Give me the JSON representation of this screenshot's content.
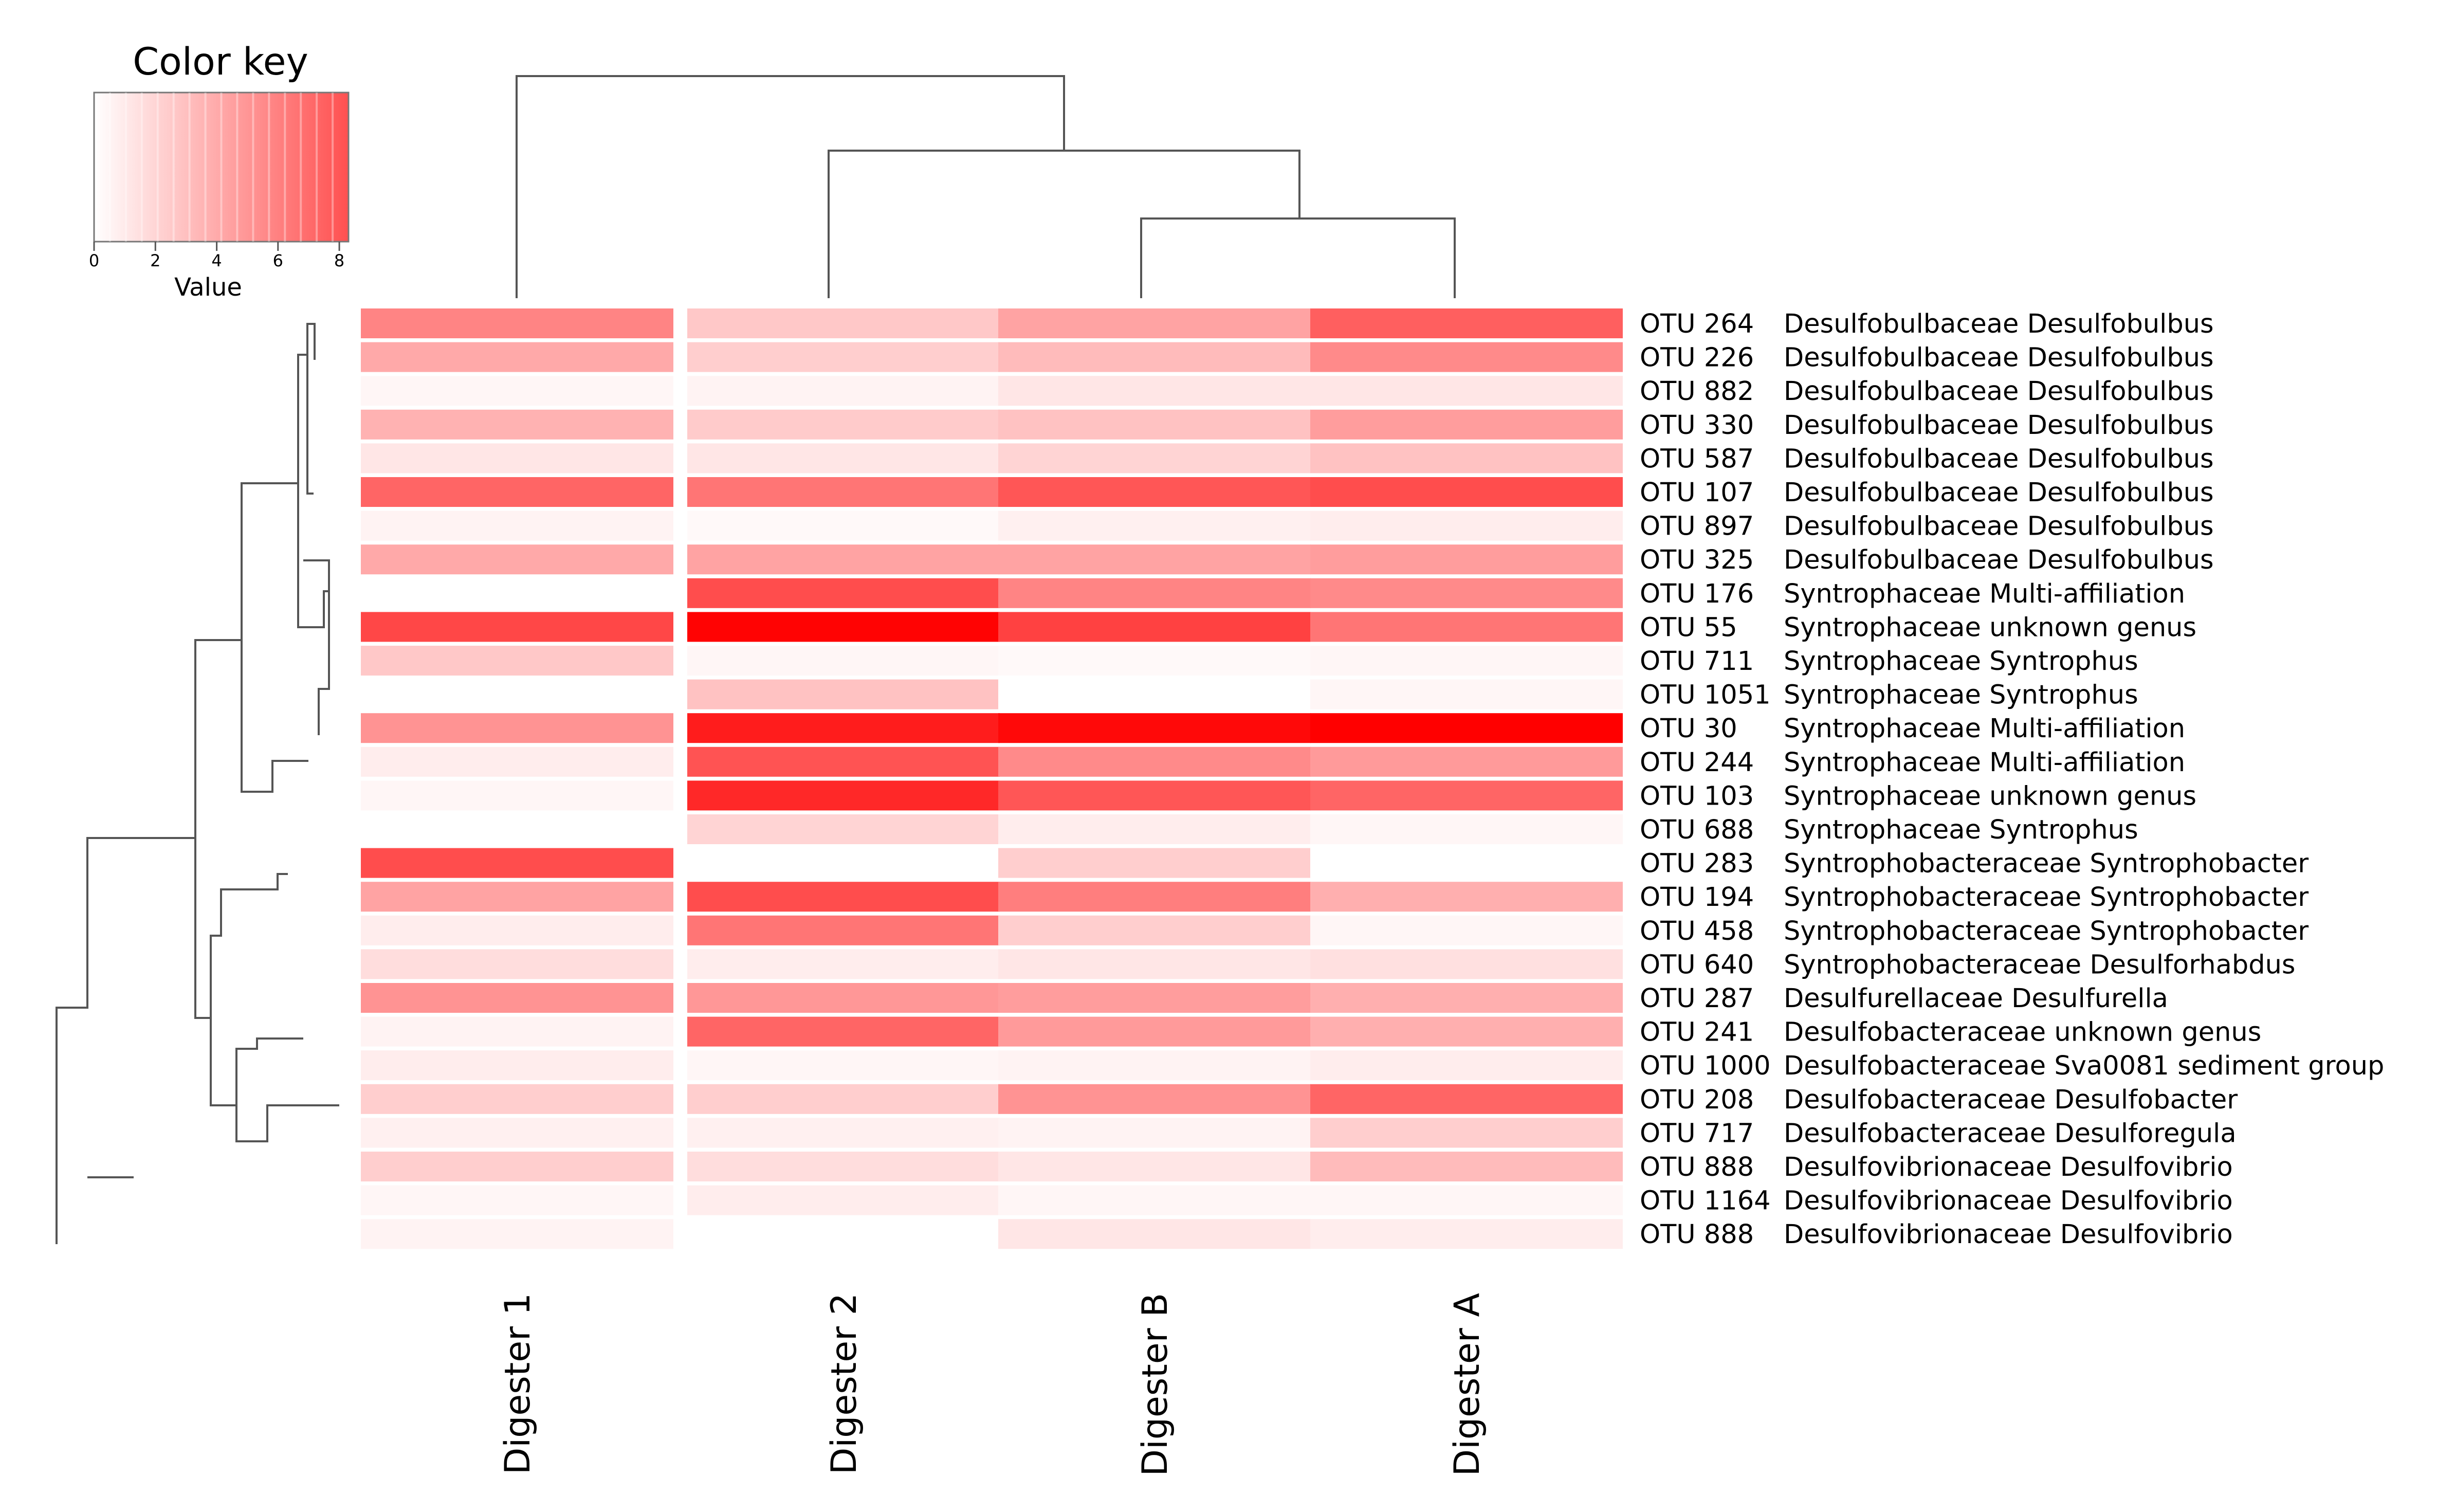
{
  "chart_data": {
    "type": "heatmap",
    "title": "",
    "color_key": {
      "title": "Color key",
      "xlabel": "Value",
      "range": [
        0,
        8.3
      ],
      "ticks": [
        "0",
        "2",
        "4",
        "6",
        "8"
      ],
      "tick_values": [
        0,
        2,
        4,
        6,
        8
      ],
      "low_color": "#ffffff",
      "high_color": "#ff0000"
    },
    "columns": [
      "Digester 1",
      "Digester 2",
      "Digester B",
      "Digester A"
    ],
    "row_ids": [
      "OTU 264",
      "OTU 226",
      "OTU 882",
      "OTU 330",
      "OTU 587",
      "OTU 107",
      "OTU 897",
      "OTU 325",
      "OTU 176",
      "OTU 55",
      "OTU 711",
      "OTU 1051",
      "OTU 30",
      "OTU 244",
      "OTU 103",
      "OTU 688",
      "OTU 283",
      "OTU 194",
      "OTU 458",
      "OTU 640",
      "OTU 287",
      "OTU 241",
      "OTU 1000",
      "OTU 208",
      "OTU 717",
      "OTU 888",
      "OTU 1164",
      "OTU 888"
    ],
    "row_taxa": [
      "Desulfobulbaceae Desulfobulbus",
      "Desulfobulbaceae Desulfobulbus",
      "Desulfobulbaceae Desulfobulbus",
      "Desulfobulbaceae Desulfobulbus",
      "Desulfobulbaceae Desulfobulbus",
      "Desulfobulbaceae Desulfobulbus",
      "Desulfobulbaceae Desulfobulbus",
      "Desulfobulbaceae Desulfobulbus",
      "Syntrophaceae Multi-affiliation",
      "Syntrophaceae unknown genus",
      "Syntrophaceae Syntrophus",
      "Syntrophaceae Syntrophus",
      "Syntrophaceae Multi-affiliation",
      "Syntrophaceae Multi-affiliation",
      "Syntrophaceae unknown genus",
      "Syntrophaceae Syntrophus",
      "Syntrophobacteraceae Syntrophobacter",
      "Syntrophobacteraceae Syntrophobacter",
      "Syntrophobacteraceae Syntrophobacter",
      "Syntrophobacteraceae Desulforhabdus",
      "Desulfurellaceae Desulfurella",
      "Desulfobacteraceae unknown genus",
      "Desulfobacteraceae Sva0081 sediment group",
      "Desulfobacteraceae Desulfobacter",
      "Desulfobacteraceae Desulforegula",
      "Desulfovibrionaceae Desulfovibrio",
      "Desulfovibrionaceae Desulfovibrio",
      "Desulfovibrionaceae Desulfovibrio"
    ],
    "values": [
      [
        4.0,
        1.8,
        3.0,
        5.2
      ],
      [
        2.8,
        1.6,
        2.2,
        3.8
      ],
      [
        0.3,
        0.4,
        0.8,
        0.8
      ],
      [
        2.5,
        1.7,
        2.0,
        3.2
      ],
      [
        0.8,
        0.8,
        1.4,
        2.0
      ],
      [
        5.0,
        4.5,
        5.5,
        5.8
      ],
      [
        0.4,
        0.2,
        0.5,
        0.6
      ],
      [
        2.8,
        3.0,
        3.0,
        3.2
      ],
      [
        0.0,
        5.8,
        4.0,
        3.8
      ],
      [
        6.0,
        8.2,
        6.2,
        4.5
      ],
      [
        1.8,
        0.3,
        0.2,
        0.3
      ],
      [
        0.0,
        2.0,
        0.0,
        0.3
      ],
      [
        3.5,
        7.4,
        8.0,
        8.3
      ],
      [
        0.6,
        5.6,
        3.8,
        3.3
      ],
      [
        0.3,
        7.0,
        5.5,
        5.0
      ],
      [
        0.0,
        1.4,
        0.6,
        0.3
      ],
      [
        5.8,
        0.0,
        1.6,
        0.0
      ],
      [
        3.0,
        5.8,
        4.2,
        2.6
      ],
      [
        0.6,
        4.5,
        1.6,
        0.3
      ],
      [
        1.1,
        0.6,
        0.8,
        1.0
      ],
      [
        3.5,
        3.4,
        3.2,
        2.6
      ],
      [
        0.4,
        5.0,
        3.3,
        2.6
      ],
      [
        0.6,
        0.3,
        0.4,
        0.6
      ],
      [
        1.6,
        1.6,
        3.5,
        5.0
      ],
      [
        0.5,
        0.5,
        0.4,
        1.6
      ],
      [
        1.6,
        1.1,
        0.8,
        2.2
      ],
      [
        0.3,
        0.6,
        0.3,
        0.3
      ],
      [
        0.4,
        0.0,
        0.8,
        0.6
      ]
    ],
    "row_dendrogram_order": "rows clustered as shown, Desulfobulbus group on top, Desulfovibrio group at bottom",
    "column_dendrogram": "Digester 1 joins last; Digester 2 joins (Digester B, Digester A)"
  }
}
